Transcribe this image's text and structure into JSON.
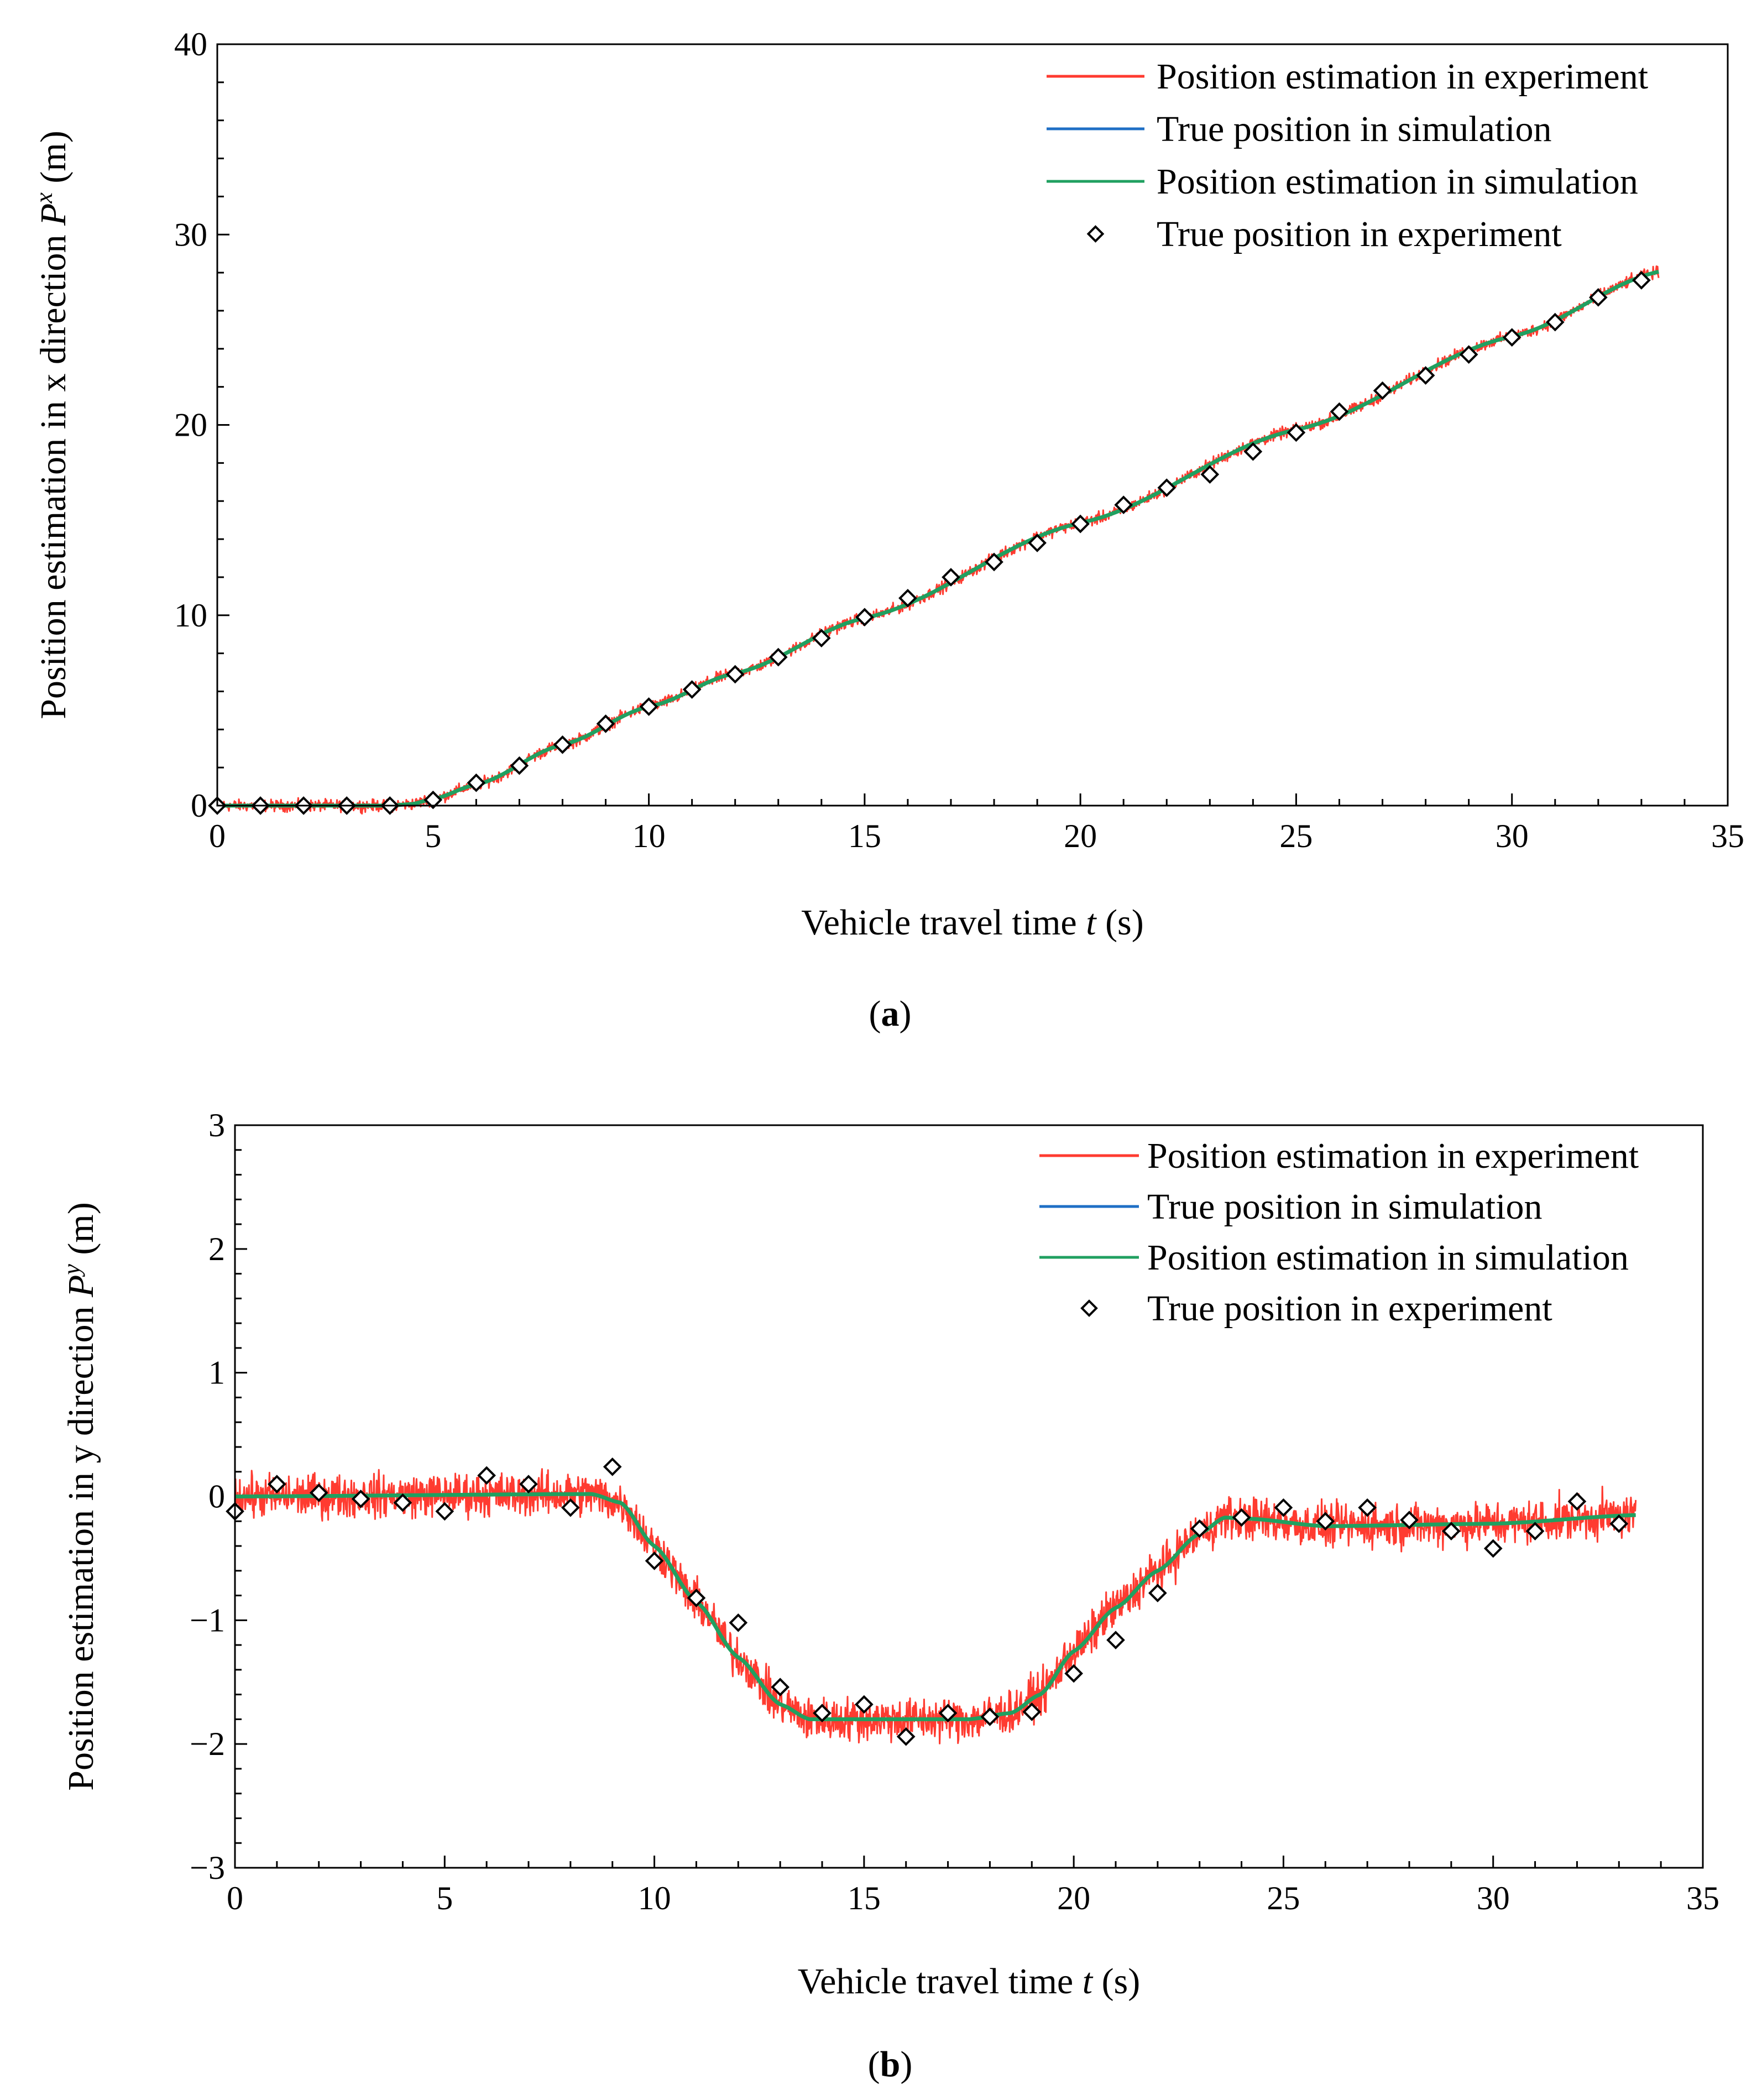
{
  "chart_data": [
    {
      "id": "a",
      "type": "line",
      "caption_letter": "a",
      "ylabel_prefix": "Position estimation in x direction ",
      "ylabel_sym": "P",
      "ylabel_sup": "x",
      "ylabel_unit": " (m)",
      "xlabel_prefix": "Vehicle travel time ",
      "xlabel_sym": "t",
      "xlabel_unit": " (s)",
      "xlim": [
        0,
        35
      ],
      "ylim": [
        0,
        40
      ],
      "xticks": [
        0,
        5,
        10,
        15,
        20,
        25,
        30,
        35
      ],
      "yticks": [
        0,
        10,
        20,
        30,
        40
      ],
      "x_minor": 1,
      "y_minor": 2,
      "legend_position": "top-right",
      "legend": [
        {
          "label": "Position estimation in experiment",
          "kind": "line",
          "color": "#ff3b30"
        },
        {
          "label": "True position in simulation",
          "kind": "line",
          "color": "#1f6fc5"
        },
        {
          "label": "Position estimation in simulation",
          "kind": "line",
          "color": "#20a060"
        },
        {
          "label": "True position in experiment",
          "kind": "marker"
        }
      ],
      "t_end": 33.4,
      "noise_amplitude": 0.25,
      "series": [
        {
          "name": "True position in simulation",
          "x": [
            0,
            4,
            4.5,
            5,
            6,
            8,
            10,
            12,
            15,
            20,
            25,
            30,
            33.4
          ],
          "y": [
            0,
            0,
            0.08,
            0.35,
            1.1,
            3.2,
            5.2,
            6.95,
            9.85,
            14.85,
            19.75,
            24.65,
            28.05
          ]
        },
        {
          "name": "True position in experiment",
          "x": [
            0,
            1,
            2,
            3,
            4,
            5,
            6,
            7,
            8,
            9,
            10,
            11,
            12,
            13,
            14,
            15,
            16,
            17,
            18,
            19,
            20,
            21,
            22,
            23,
            24,
            25,
            26,
            27,
            28,
            29,
            30,
            31,
            32,
            33
          ],
          "y": [
            0,
            0,
            0,
            0,
            0,
            0.3,
            1.2,
            2.1,
            3.2,
            4.3,
            5.2,
            6.1,
            6.9,
            7.8,
            8.8,
            9.9,
            10.9,
            12.0,
            12.8,
            13.8,
            14.8,
            15.8,
            16.7,
            17.4,
            18.6,
            19.6,
            20.7,
            21.8,
            22.6,
            23.7,
            24.6,
            25.4,
            26.7,
            27.6
          ]
        }
      ]
    },
    {
      "id": "b",
      "type": "line",
      "caption_letter": "b",
      "ylabel_prefix": "Position estimation in y direction ",
      "ylabel_sym": "P",
      "ylabel_sup": "y",
      "ylabel_unit": " (m)",
      "xlabel_prefix": "Vehicle travel time ",
      "xlabel_sym": "t",
      "xlabel_unit": " (s)",
      "xlim": [
        0,
        35
      ],
      "ylim": [
        -3,
        3
      ],
      "xticks": [
        0,
        5,
        10,
        15,
        20,
        25,
        30,
        35
      ],
      "yticks": [
        -3,
        -2,
        -1,
        0,
        1,
        2,
        3
      ],
      "x_minor": 1,
      "y_minor": 0.2,
      "legend_position": "top-right",
      "legend": [
        {
          "label": "Position estimation in experiment",
          "kind": "line",
          "color": "#ff3b30"
        },
        {
          "label": "True position in simulation",
          "kind": "line",
          "color": "#1f6fc5"
        },
        {
          "label": "Position estimation in simulation",
          "kind": "line",
          "color": "#20a060"
        },
        {
          "label": "True position in experiment",
          "kind": "marker"
        }
      ],
      "t_end": 33.4,
      "noise_amplitude": 0.14,
      "series": [
        {
          "name": "True position in simulation",
          "x": [
            0,
            8.5,
            9.2,
            10,
            11,
            12,
            13,
            13.7,
            14.2,
            17.5,
            18.5,
            19.2,
            20,
            21,
            22,
            23,
            23.6,
            24.2,
            26,
            30,
            33.4
          ],
          "y": [
            0,
            0.02,
            -0.05,
            -0.4,
            -0.85,
            -1.3,
            -1.68,
            -1.8,
            -1.8,
            -1.8,
            -1.75,
            -1.6,
            -1.25,
            -0.9,
            -0.6,
            -0.3,
            -0.17,
            -0.18,
            -0.24,
            -0.22,
            -0.15
          ]
        },
        {
          "name": "True position in experiment",
          "x": [
            0,
            1,
            2,
            3,
            4,
            5,
            6,
            7,
            8,
            9,
            10,
            11,
            12,
            13,
            14,
            15,
            16,
            17,
            18,
            19,
            20,
            21,
            22,
            23,
            24,
            25,
            26,
            27,
            28,
            29,
            30,
            31,
            32,
            33
          ],
          "y": [
            -0.12,
            0.1,
            0.03,
            -0.02,
            -0.05,
            -0.12,
            0.17,
            0.1,
            -0.09,
            0.24,
            -0.52,
            -0.82,
            -1.02,
            -1.54,
            -1.75,
            -1.68,
            -1.94,
            -1.75,
            -1.78,
            -1.74,
            -1.43,
            -1.16,
            -0.78,
            -0.26,
            -0.17,
            -0.09,
            -0.2,
            -0.09,
            -0.19,
            -0.28,
            -0.42,
            -0.28,
            -0.04,
            -0.22
          ]
        }
      ]
    }
  ]
}
